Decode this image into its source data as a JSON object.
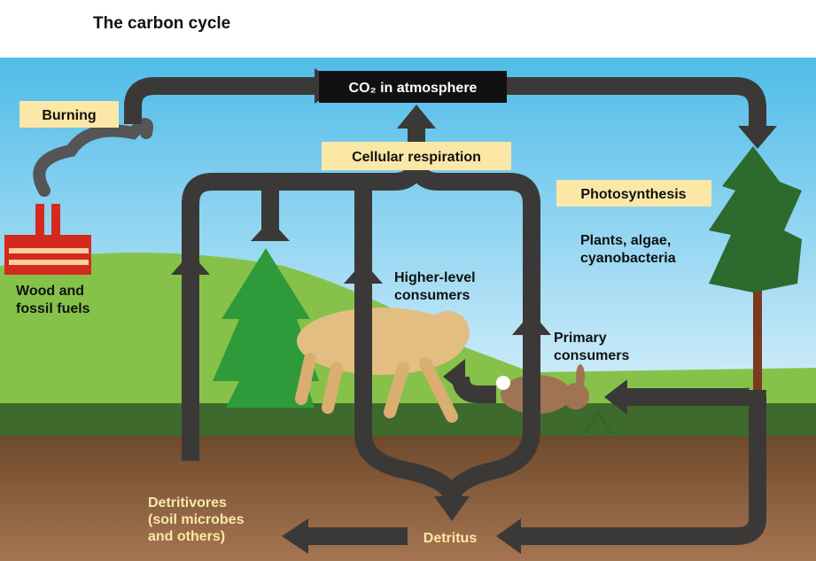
{
  "title": "The carbon cycle",
  "nodes": [
    {
      "lines": [
        "CO₂ in atmosphere"
      ]
    },
    {
      "lines": [
        "Burning"
      ]
    },
    {
      "lines": [
        "Cellular respiration"
      ]
    },
    {
      "lines": [
        "Photosynthesis"
      ]
    },
    {
      "lines": [
        "Plants, algae,",
        "cyanobacteria"
      ]
    },
    {
      "lines": [
        "Wood and",
        "fossil fuels"
      ]
    },
    {
      "lines": [
        "Higher-level",
        "consumers"
      ]
    },
    {
      "lines": [
        "Primary",
        "consumers"
      ]
    },
    {
      "lines": [
        "Detritivores",
        "(soil microbes",
        "and others)"
      ]
    },
    {
      "lines": [
        "Detritus"
      ]
    }
  ]
}
